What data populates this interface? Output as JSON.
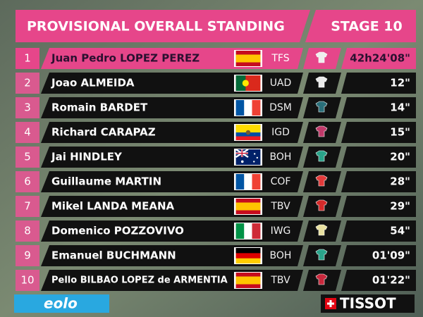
{
  "header": {
    "title": "PROVISIONAL OVERALL STANDING",
    "stage": "STAGE 10"
  },
  "table": {
    "rows": [
      [
        "1",
        "Juan Pedro LOPEZ PEREZ",
        "TFS",
        "42h24'08\""
      ],
      [
        "2",
        "Joao ALMEIDA",
        "UAD",
        "12\""
      ],
      [
        "3",
        "Romain BARDET",
        "DSM",
        "14\""
      ],
      [
        "4",
        "Richard CARAPAZ",
        "IGD",
        "15\""
      ],
      [
        "5",
        "Jai HINDLEY",
        "BOH",
        "20\""
      ],
      [
        "6",
        "Guillaume MARTIN",
        "COF",
        "28\""
      ],
      [
        "7",
        "Mikel LANDA MEANA",
        "TBV",
        "29\""
      ],
      [
        "8",
        "Domenico POZZOVIVO",
        "IWG",
        "54\""
      ],
      [
        "9",
        "Emanuel BUCHMANN",
        "BOH",
        "01'09\""
      ],
      [
        "10",
        "Pello BILBAO LOPEZ de ARMENTIA",
        "TBV",
        "01'22\""
      ]
    ]
  },
  "footer": {
    "sponsor_left": "eolo",
    "sponsor_right": "TISSOT"
  }
}
